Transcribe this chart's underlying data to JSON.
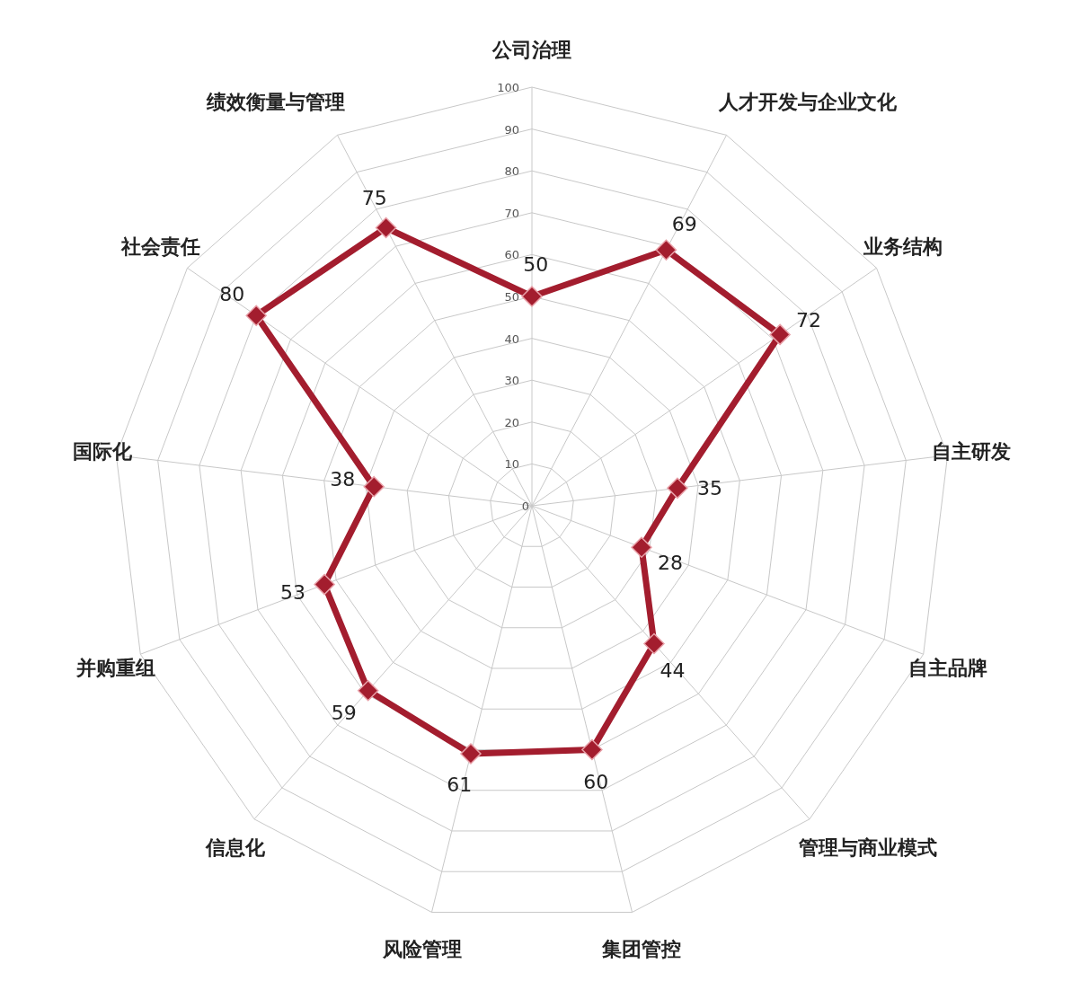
{
  "chart_data": {
    "type": "radar",
    "categories": [
      "公司治理",
      "人才开发与企业文化",
      "业务结构",
      "自主研发",
      "自主品牌",
      "管理与商业模式",
      "集团管控",
      "风险管理",
      "信息化",
      "并购重组",
      "国际化",
      "社会责任",
      "绩效衡量与管理"
    ],
    "series": [
      {
        "color": "#a31d2e",
        "values": [
          50,
          69,
          72,
          35,
          28,
          44,
          60,
          61,
          59,
          53,
          38,
          80,
          75
        ]
      }
    ],
    "ylim": [
      0,
      100
    ],
    "yticks": [
      0,
      10,
      20,
      30,
      40,
      50,
      60,
      70,
      80,
      90,
      100
    ],
    "grid": true,
    "marker": "diamond",
    "data_labels": true
  }
}
